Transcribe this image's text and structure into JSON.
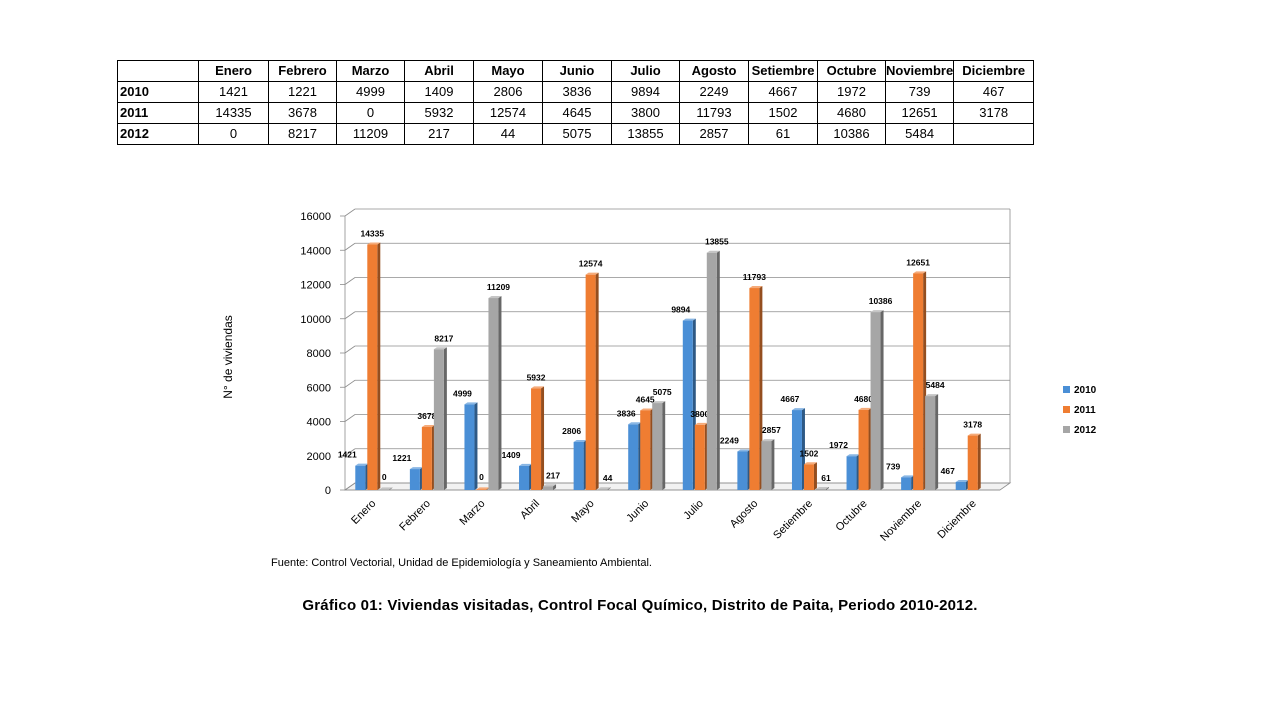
{
  "table": {
    "corner": "",
    "months": [
      "Enero",
      "Febrero",
      "Marzo",
      "Abril",
      "Mayo",
      "Junio",
      "Julio",
      "Agosto",
      "Setiembre",
      "Octubre",
      "Noviembre",
      "Diciembre"
    ],
    "rows": [
      {
        "year": "2010",
        "values": [
          "1421",
          "1221",
          "4999",
          "1409",
          "2806",
          "3836",
          "9894",
          "2249",
          "4667",
          "1972",
          "739",
          "467"
        ]
      },
      {
        "year": "2011",
        "values": [
          "14335",
          "3678",
          "0",
          "5932",
          "12574",
          "4645",
          "3800",
          "11793",
          "1502",
          "4680",
          "12651",
          "3178"
        ]
      },
      {
        "year": "2012",
        "values": [
          "0",
          "8217",
          "11209",
          "217",
          "44",
          "5075",
          "13855",
          "2857",
          "61",
          "10386",
          "5484",
          ""
        ]
      }
    ]
  },
  "chart_data": {
    "type": "bar",
    "title": "",
    "xlabel": "",
    "ylabel": "N° de viviendas",
    "ylim": [
      0,
      16000
    ],
    "yticks": [
      0,
      2000,
      4000,
      6000,
      8000,
      10000,
      12000,
      14000,
      16000
    ],
    "grid": true,
    "legend_position": "right",
    "categories": [
      "Enero",
      "Febrero",
      "Marzo",
      "Abril",
      "Mayo",
      "Junio",
      "Julio",
      "Agosto",
      "Setiembre",
      "Octubre",
      "Noviembre",
      "Diciembre"
    ],
    "series": [
      {
        "name": "2010",
        "color": "#4a8fd6",
        "values": [
          1421,
          1221,
          4999,
          1409,
          2806,
          3836,
          9894,
          2249,
          4667,
          1972,
          739,
          467
        ]
      },
      {
        "name": "2011",
        "color": "#ef7d32",
        "values": [
          14335,
          3678,
          0,
          5932,
          12574,
          4645,
          3800,
          11793,
          1502,
          4680,
          12651,
          3178
        ]
      },
      {
        "name": "2012",
        "color": "#a6a6a6",
        "values": [
          0,
          8217,
          11209,
          217,
          44,
          5075,
          13855,
          2857,
          61,
          10386,
          5484,
          null
        ]
      }
    ]
  },
  "source": "Fuente: Control Vectorial, Unidad de Epidemiología y Saneamiento Ambiental.",
  "caption": "Gráfico 01: Viviendas visitadas, Control Focal Químico, Distrito de Paita, Periodo 2010-2012."
}
